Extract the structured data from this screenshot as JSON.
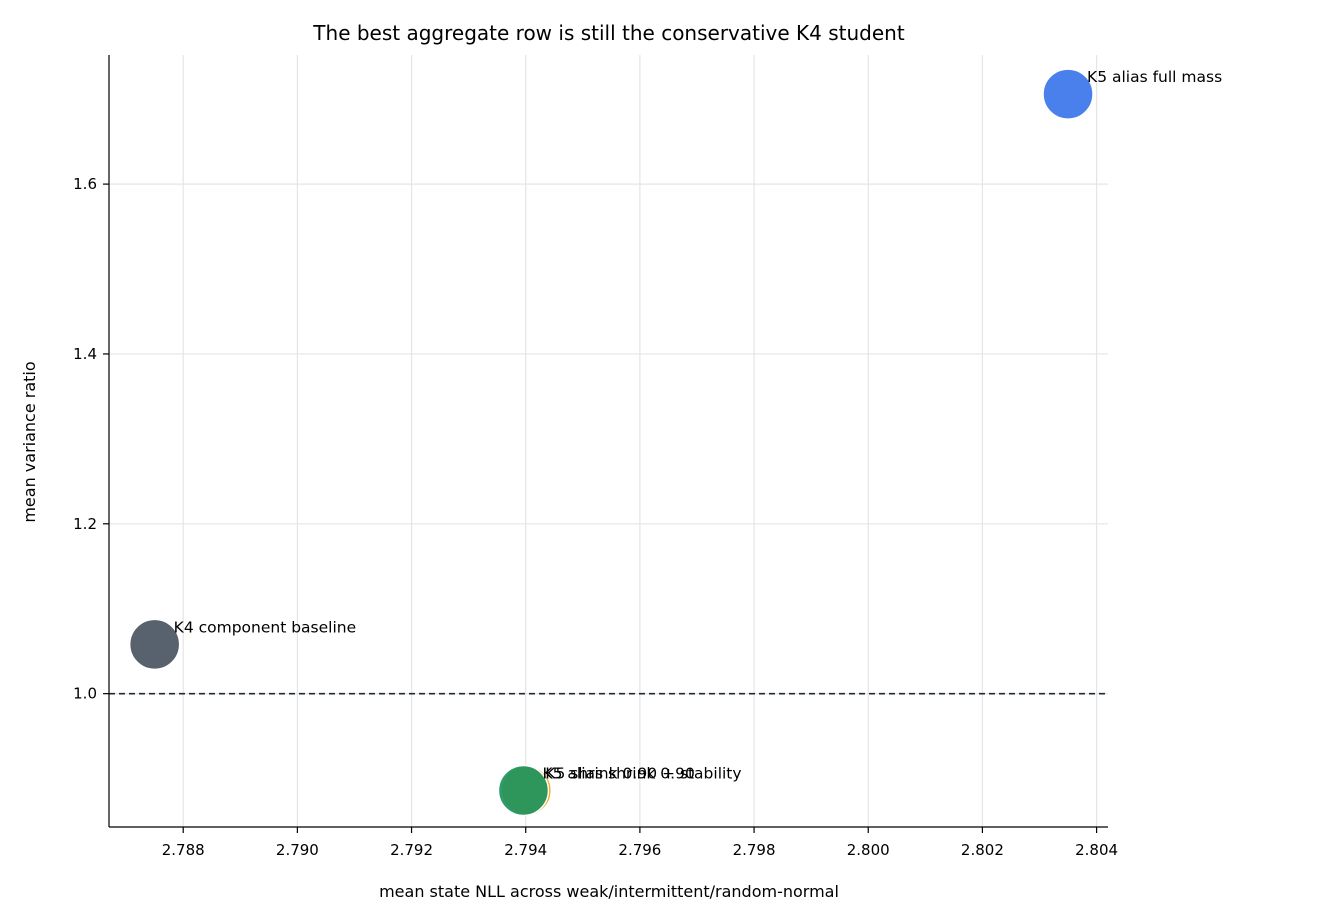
{
  "chart_data": {
    "type": "scatter",
    "title": "The best aggregate row is still the conservative K4 student",
    "xlabel": "mean state NLL across weak/intermittent/random-normal",
    "ylabel": "mean variance ratio",
    "xlim": [
      2.7867,
      2.8042
    ],
    "ylim": [
      0.843,
      1.752
    ],
    "xticks": [
      {
        "value": 2.788,
        "label": "2.788"
      },
      {
        "value": 2.79,
        "label": "2.790"
      },
      {
        "value": 2.792,
        "label": "2.792"
      },
      {
        "value": 2.794,
        "label": "2.794"
      },
      {
        "value": 2.796,
        "label": "2.796"
      },
      {
        "value": 2.798,
        "label": "2.798"
      },
      {
        "value": 2.8,
        "label": "2.800"
      },
      {
        "value": 2.802,
        "label": "2.802"
      },
      {
        "value": 2.804,
        "label": "2.804"
      }
    ],
    "yticks": [
      {
        "value": 1.0,
        "label": "1.0"
      },
      {
        "value": 1.2,
        "label": "1.2"
      },
      {
        "value": 1.4,
        "label": "1.4"
      },
      {
        "value": 1.6,
        "label": "1.6"
      }
    ],
    "grid": true,
    "reference_line": {
      "y": 1.0,
      "style": "dashed",
      "color": "#1f2937"
    },
    "points": [
      {
        "label": "K4 component baseline",
        "x": 2.7875,
        "y": 1.058,
        "color": "#4b5563"
      },
      {
        "label": "K5 alias full mass",
        "x": 2.8035,
        "y": 1.706,
        "color": "#3b76ea"
      },
      {
        "label": "K5 shrink 0.90 + stability",
        "x": 2.79401,
        "y": 0.886,
        "color": "#f59e0b"
      },
      {
        "label": "K5 alias shrink 0.90",
        "x": 2.79396,
        "y": 0.886,
        "color": "#1f9560"
      }
    ]
  }
}
